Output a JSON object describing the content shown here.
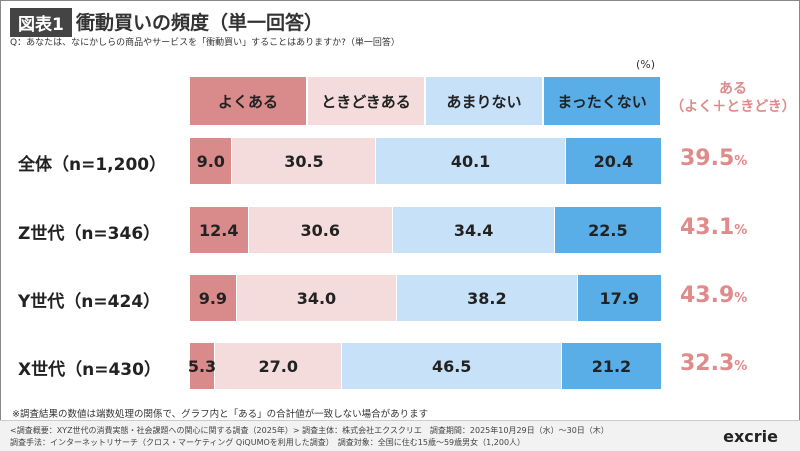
{
  "tag": "図表1",
  "title": "衝動買いの頻度（単一回答）",
  "question": "Q：あなたは、なにかしらの商品やサービスを「衝動買い」することはありますか?（単一回答）",
  "unit": "(%)",
  "aru_header": [
    "ある",
    "（よく＋ときどき）"
  ],
  "chart_data": {
    "type": "bar",
    "orientation": "horizontal",
    "stacked": true,
    "xlim": [
      0,
      100
    ],
    "categories": [
      "全体（n=1,200）",
      "Z世代（n=346）",
      "Y世代（n=424）",
      "X世代（n=430）"
    ],
    "series": [
      {
        "name": "よくある",
        "color": "#d98a8a",
        "values": [
          9.0,
          12.4,
          9.9,
          5.3
        ]
      },
      {
        "name": "ときどきある",
        "color": "#f5dcdc",
        "values": [
          30.5,
          30.6,
          34.0,
          27.0
        ]
      },
      {
        "name": "あまりない",
        "color": "#c6e1f8",
        "values": [
          40.1,
          34.4,
          38.2,
          46.5
        ]
      },
      {
        "name": "まったくない",
        "color": "#5aaee8",
        "values": [
          20.4,
          22.5,
          17.9,
          21.2
        ]
      }
    ],
    "aru_totals": [
      "39.5",
      "43.1",
      "43.9",
      "32.3"
    ],
    "aru_unit": "%"
  },
  "note": "※調査結果の数値は端数処理の関係で、グラフ内と「ある」の合計値が一致しない場合があります",
  "footer": [
    "<調査概要：XYZ世代の消費実態・社会課題への関心に関する調査（2025年）> 調査主体：株式会社エクスクリエ　調査期間：2025年10月29日（水）～30日（木）",
    "調査手法：インターネットリサーチ（クロス・マーケティング QiQUMOを利用した調査）　調査対象：全国に住む15歳～59歳男女（1,200人）"
  ],
  "logo": "excrie"
}
